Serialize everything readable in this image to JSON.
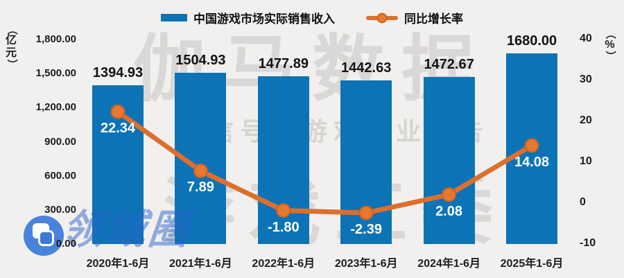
{
  "legend": {
    "bar_label": "中国游戏市场实际销售收入",
    "line_label": "同比增长率"
  },
  "chart_data": {
    "type": "bar",
    "subtype": "bar+line combo, dual axis",
    "categories": [
      "2020年1-6月",
      "2021年1-6月",
      "2022年1-6月",
      "2023年1-6月",
      "2024年1-6月",
      "2025年1-6月"
    ],
    "series": [
      {
        "name": "中国游戏市场实际销售收入",
        "type": "bar",
        "axis": "left",
        "color": "#0d73b7",
        "values": [
          1394.93,
          1504.93,
          1477.89,
          1442.63,
          1472.67,
          1680.0
        ],
        "labels": [
          "1394.93",
          "1504.93",
          "1477.89",
          "1442.63",
          "1472.67",
          "1680.00"
        ]
      },
      {
        "name": "同比增长率",
        "type": "line",
        "axis": "right",
        "color": "#dd6f2d",
        "marker_color": "#e8772f",
        "marker_edge": "#c96424",
        "values": [
          22.34,
          7.89,
          -1.8,
          -2.39,
          2.08,
          14.08
        ],
        "labels": [
          "22.34",
          "7.89",
          "-1.80",
          "-2.39",
          "2.08",
          "14.08"
        ]
      }
    ],
    "left_axis": {
      "unit": "（亿元）",
      "min": 0,
      "max": 1800,
      "ticks": [
        {
          "value": 0,
          "label": "0.00"
        },
        {
          "value": 300,
          "label": "300.00"
        },
        {
          "value": 600,
          "label": "600.00"
        },
        {
          "value": 900,
          "label": "900.00"
        },
        {
          "value": 1200,
          "label": "1,200.00"
        },
        {
          "value": 1500,
          "label": "1,500.00"
        },
        {
          "value": 1800,
          "label": "1,800.00"
        }
      ]
    },
    "right_axis": {
      "unit": "（%）",
      "min": -10,
      "max": 40,
      "ticks": [
        {
          "value": -10,
          "label": "-10"
        },
        {
          "value": 0,
          "label": "0"
        },
        {
          "value": 10,
          "label": "10"
        },
        {
          "value": 20,
          "label": "20"
        },
        {
          "value": 30,
          "label": "30"
        },
        {
          "value": 40,
          "label": "40"
        }
      ]
    },
    "legend_position": "top",
    "grid": false,
    "background": "#f1f0ee"
  },
  "watermarks": {
    "big_top": "伽马数据",
    "wechat_line": "微信号：游戏产业报告",
    "big_bottom": "游戏工委",
    "corner_text": "领域圈",
    "corner_icon": "overlapping-squares-logo"
  }
}
